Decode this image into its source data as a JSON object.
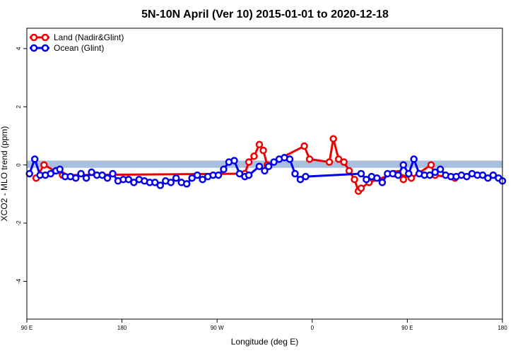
{
  "chart_data": {
    "type": "line",
    "title": "5N-10N April (Ver 10)   2015-01-01 to 2020-12-18",
    "xlabel": "Longitude (deg E)",
    "ylabel": "XCO2 - MLO trend (ppm)",
    "xlim": [
      90,
      450
    ],
    "ylim": [
      -5.3,
      4.7
    ],
    "x_ticks": [
      90,
      162,
      234,
      306,
      378,
      450
    ],
    "x_tick_labels": [
      "90 E",
      "180",
      "90 W",
      "0",
      "90 E",
      "180"
    ],
    "y_ticks": [
      -4,
      -2,
      0,
      2,
      4
    ],
    "y_tick_labels": [
      "-4",
      "-2",
      "0",
      "2",
      "4"
    ],
    "legend_position": "top-left",
    "grid": false,
    "band": {
      "y_low": -0.1,
      "y_high": 0.15,
      "color": "#a8bfe0"
    },
    "series": [
      {
        "name": "Land (Nadir&Glint)",
        "color": "#ee0000",
        "x": [
          97,
          103,
          117,
          255,
          258,
          262,
          266,
          269,
          272,
          300,
          304,
          319,
          322,
          326,
          330,
          334,
          338,
          341,
          343,
          349,
          368,
          375,
          371,
          381,
          396,
          399,
          414
        ],
        "y": [
          -0.45,
          0.0,
          -0.35,
          -0.3,
          0.1,
          0.3,
          0.7,
          0.5,
          0.0,
          0.65,
          0.2,
          0.1,
          0.9,
          0.2,
          0.1,
          -0.2,
          -0.5,
          -0.9,
          -0.8,
          -0.6,
          -0.3,
          -0.5,
          -0.3,
          -0.45,
          0.0,
          -0.35,
          -0.45
        ]
      },
      {
        "name": "Ocean (Glint)",
        "color": "#0000ee",
        "x": [
          92,
          96,
          100,
          104,
          108,
          112,
          115,
          119,
          123,
          127,
          131,
          135,
          139,
          143,
          147,
          151,
          155,
          159,
          163,
          167,
          171,
          175,
          179,
          183,
          187,
          191,
          195,
          199,
          203,
          207,
          211,
          215,
          219,
          223,
          227,
          231,
          235,
          239,
          243,
          247,
          251,
          255,
          258,
          266,
          270,
          273,
          277,
          281,
          285,
          289,
          293,
          297,
          301,
          343,
          347,
          351,
          355,
          359,
          363,
          367,
          371,
          375,
          379,
          383,
          387,
          391,
          395,
          399,
          403,
          407,
          411,
          415,
          419,
          423,
          427,
          431,
          435,
          439,
          443,
          447,
          450
        ],
        "y": [
          -0.3,
          0.2,
          -0.35,
          -0.35,
          -0.3,
          -0.2,
          -0.15,
          -0.4,
          -0.4,
          -0.45,
          -0.3,
          -0.45,
          -0.25,
          -0.35,
          -0.35,
          -0.45,
          -0.3,
          -0.55,
          -0.5,
          -0.5,
          -0.6,
          -0.5,
          -0.55,
          -0.6,
          -0.6,
          -0.7,
          -0.55,
          -0.6,
          -0.45,
          -0.6,
          -0.65,
          -0.45,
          -0.35,
          -0.5,
          -0.4,
          -0.35,
          -0.35,
          -0.15,
          0.1,
          0.15,
          -0.3,
          -0.4,
          -0.35,
          -0.05,
          -0.2,
          -0.05,
          0.1,
          0.2,
          0.25,
          0.2,
          -0.3,
          -0.5,
          -0.4,
          -0.3,
          -0.5,
          -0.4,
          -0.45,
          -0.6,
          -0.3,
          -0.3,
          -0.35,
          0.0,
          -0.3,
          0.2,
          -0.3,
          -0.35,
          -0.35,
          -0.25,
          -0.15,
          -0.35,
          -0.4,
          -0.4,
          -0.35,
          -0.4,
          -0.3,
          -0.35,
          -0.35,
          -0.45,
          -0.35,
          -0.45,
          -0.55
        ]
      }
    ]
  }
}
